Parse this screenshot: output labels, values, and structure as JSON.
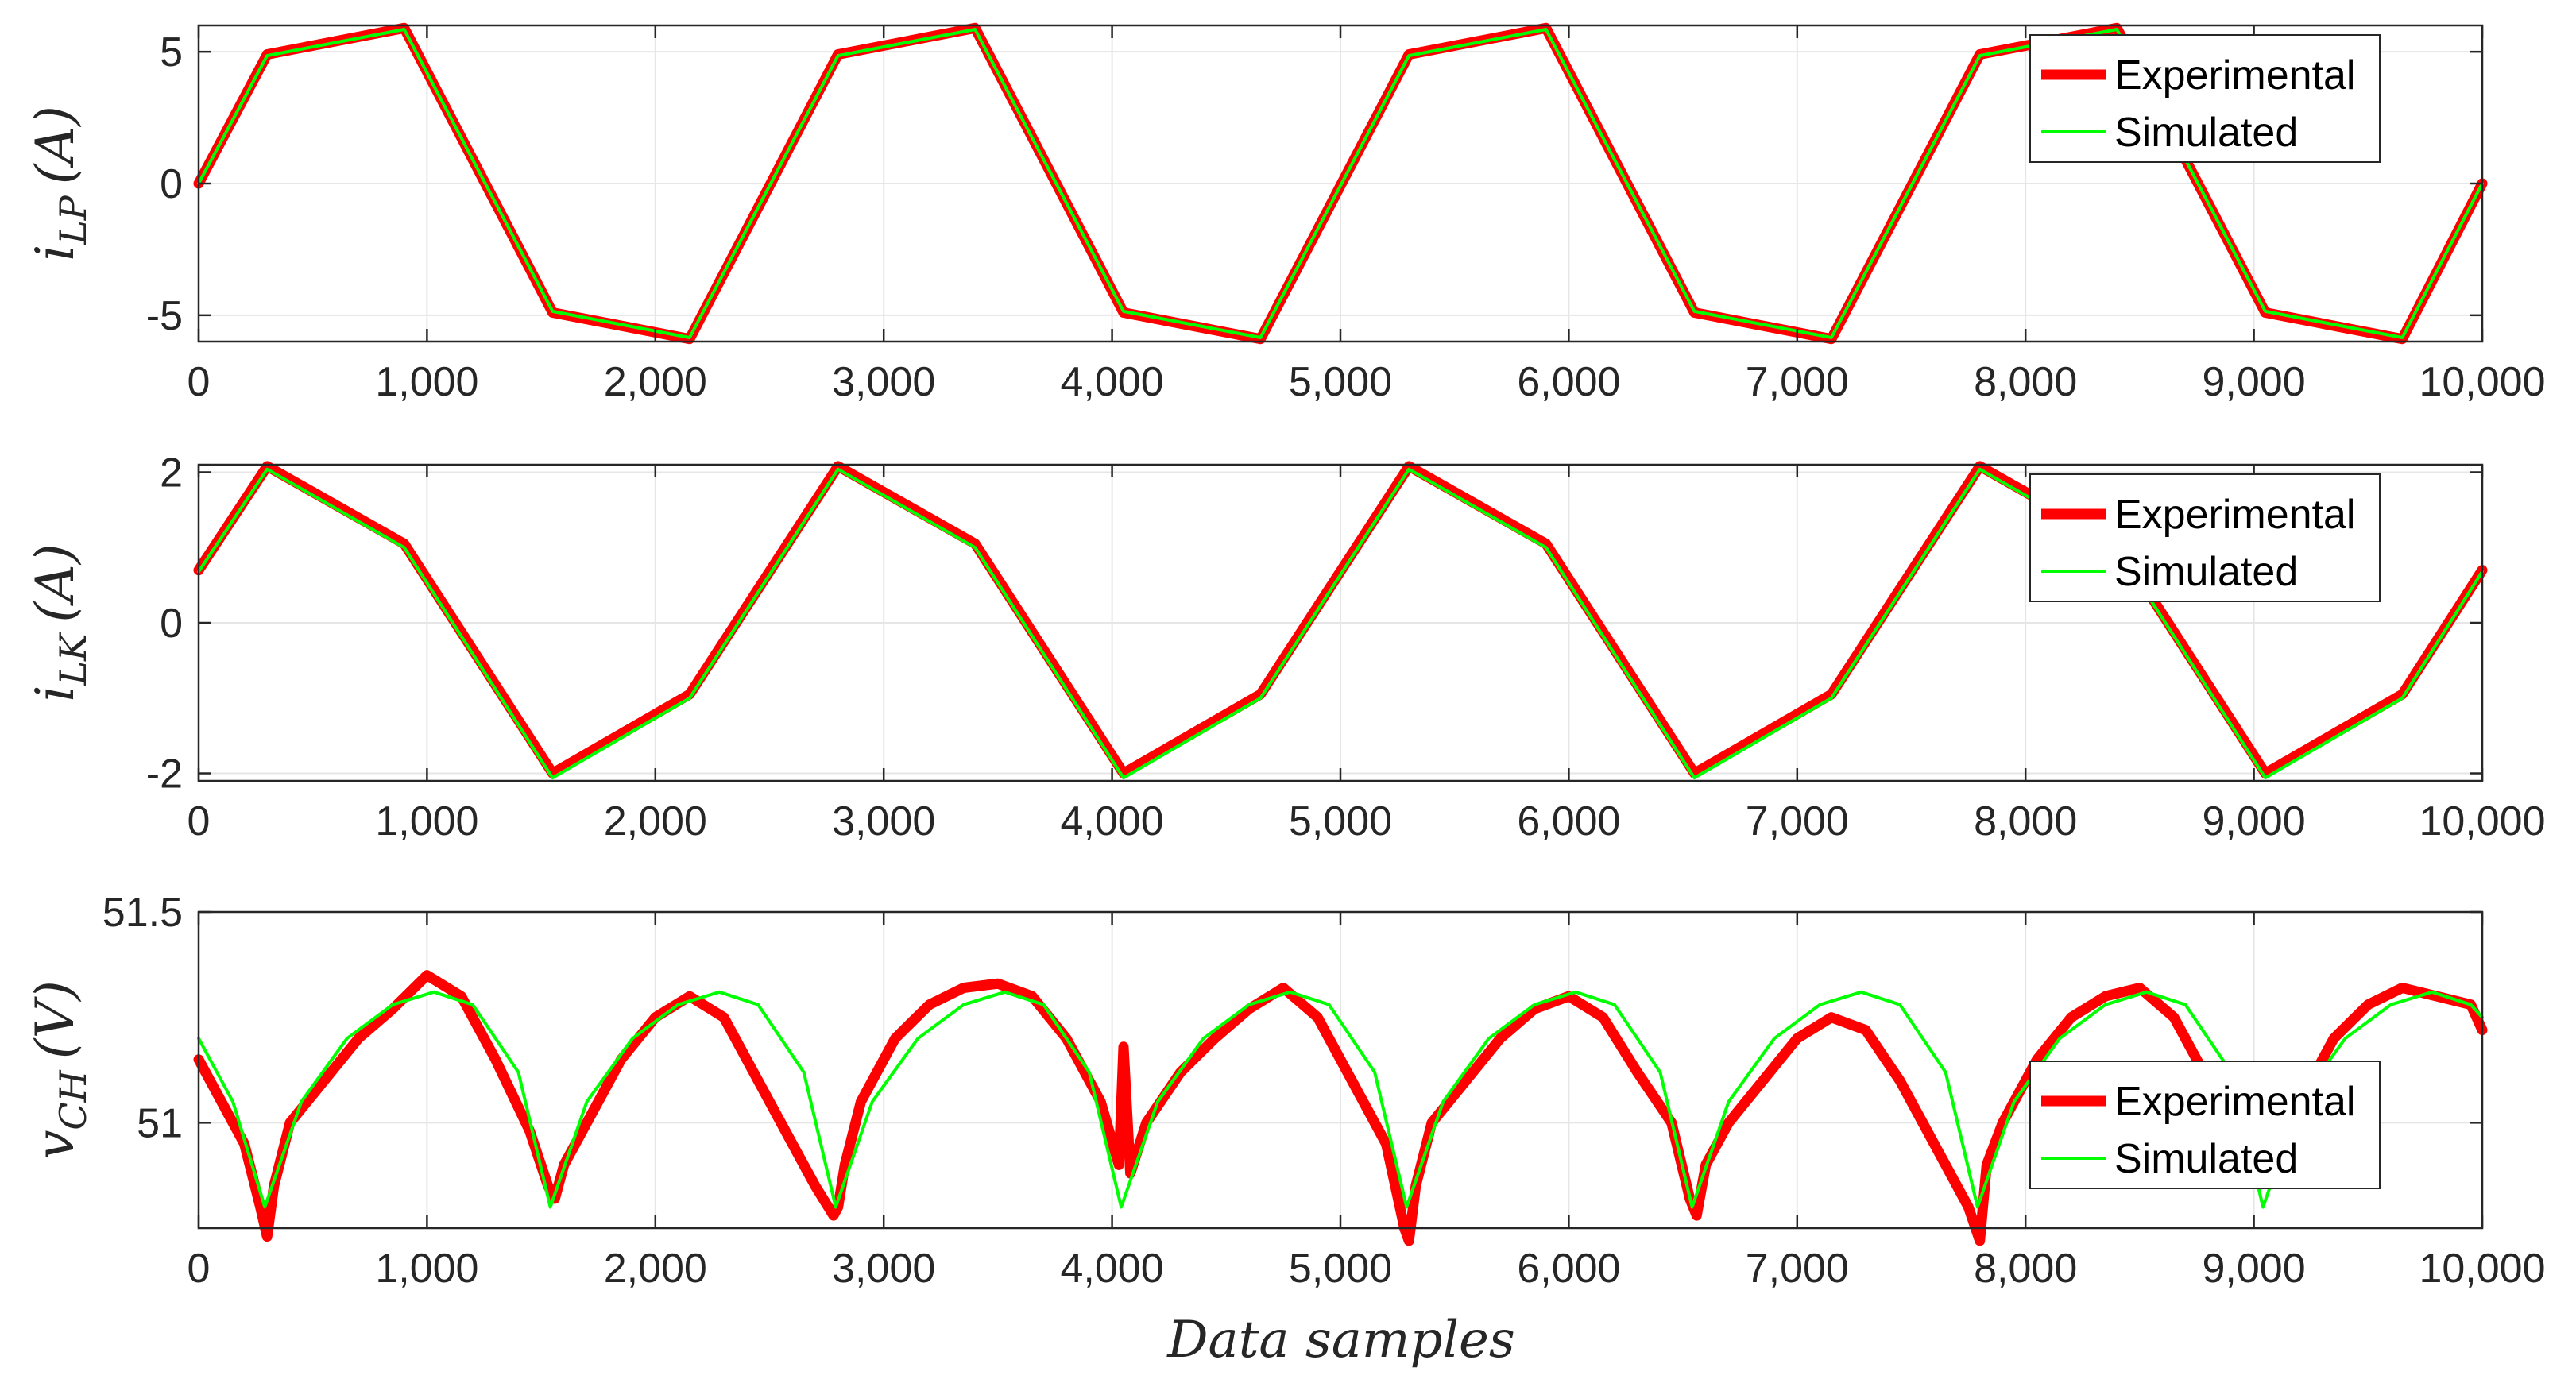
{
  "chart_data": [
    {
      "type": "line",
      "ylabel_main": "i",
      "ylabel_sub": "LP",
      "ylabel_unit": "(A)",
      "xlim": [
        0,
        10000
      ],
      "ylim": [
        -6,
        6
      ],
      "yticks": [
        -5,
        0,
        5
      ],
      "ytick_labels": [
        "-5",
        "0",
        "5"
      ],
      "xticks": [
        0,
        1000,
        2000,
        3000,
        4000,
        5000,
        6000,
        7000,
        8000,
        9000,
        10000
      ],
      "xtick_labels": [
        "0",
        "1,000",
        "2,000",
        "3,000",
        "4,000",
        "5,000",
        "6,000",
        "7,000",
        "8,000",
        "9,000",
        "10,000"
      ],
      "grid": true,
      "legend_position": "top-right",
      "series": [
        {
          "name": "Experimental",
          "color": "#ff0000",
          "x": [
            0,
            300,
            900,
            1550,
            2150,
            2800,
            3400,
            4050,
            4650,
            5300,
            5900,
            6550,
            7150,
            7800,
            8400,
            9050,
            9650,
            10000
          ],
          "values": [
            0,
            4.9,
            5.9,
            -4.9,
            -5.9,
            4.9,
            5.9,
            -4.9,
            -5.9,
            4.9,
            5.9,
            -4.9,
            -5.9,
            4.9,
            5.9,
            -4.9,
            -5.9,
            0
          ]
        },
        {
          "name": "Simulated",
          "color": "#00ff00",
          "x": [
            0,
            300,
            900,
            1550,
            2150,
            2800,
            3400,
            4050,
            4650,
            5300,
            5900,
            6550,
            7150,
            7800,
            8400,
            9050,
            9650,
            10000
          ],
          "values": [
            0,
            4.85,
            5.85,
            -4.85,
            -5.85,
            4.85,
            5.85,
            -4.85,
            -5.85,
            4.85,
            5.85,
            -4.85,
            -5.85,
            4.85,
            5.85,
            -4.85,
            -5.85,
            0
          ]
        }
      ]
    },
    {
      "type": "line",
      "ylabel_main": "i",
      "ylabel_sub": "LK",
      "ylabel_unit": "(A)",
      "xlim": [
        0,
        10000
      ],
      "ylim": [
        -2.1,
        2.1
      ],
      "yticks": [
        -2,
        0,
        2
      ],
      "ytick_labels": [
        "-2",
        "0",
        "2"
      ],
      "xticks": [
        0,
        1000,
        2000,
        3000,
        4000,
        5000,
        6000,
        7000,
        8000,
        9000,
        10000
      ],
      "xtick_labels": [
        "0",
        "1,000",
        "2,000",
        "3,000",
        "4,000",
        "5,000",
        "6,000",
        "7,000",
        "8,000",
        "9,000",
        "10,000"
      ],
      "grid": true,
      "legend_position": "top-right",
      "series": [
        {
          "name": "Experimental",
          "color": "#ff0000",
          "x": [
            0,
            300,
            900,
            1550,
            2150,
            2800,
            3400,
            4050,
            4650,
            5300,
            5900,
            6550,
            7150,
            7800,
            8400,
            9050,
            9650,
            10000
          ],
          "values": [
            0.7,
            2.08,
            1.05,
            -2.0,
            -0.95,
            2.08,
            1.05,
            -2.0,
            -0.95,
            2.08,
            1.05,
            -2.0,
            -0.95,
            2.08,
            1.05,
            -2.0,
            -0.95,
            0.7
          ]
        },
        {
          "name": "Simulated",
          "color": "#00ff00",
          "x": [
            0,
            300,
            900,
            1550,
            2150,
            2800,
            3400,
            4050,
            4650,
            5300,
            5900,
            6550,
            7150,
            7800,
            8400,
            9050,
            9650,
            10000
          ],
          "values": [
            0.68,
            2.04,
            1.0,
            -2.06,
            -1.0,
            2.04,
            1.0,
            -2.06,
            -1.0,
            2.04,
            1.0,
            -2.06,
            -1.0,
            2.04,
            1.0,
            -2.06,
            -1.0,
            0.68
          ]
        }
      ]
    },
    {
      "type": "line",
      "ylabel_main": "v",
      "ylabel_sub": "CH",
      "ylabel_unit": "(V)",
      "xlabel": "Data samples",
      "xlim": [
        0,
        10000
      ],
      "ylim": [
        50.75,
        51.5
      ],
      "yticks": [
        51,
        51.5
      ],
      "ytick_labels": [
        "51",
        "51.5"
      ],
      "xticks": [
        0,
        1000,
        2000,
        3000,
        4000,
        5000,
        6000,
        7000,
        8000,
        9000,
        10000
      ],
      "xtick_labels": [
        "0",
        "1,000",
        "2,000",
        "3,000",
        "4,000",
        "5,000",
        "6,000",
        "7,000",
        "8,000",
        "9,000",
        "10,000"
      ],
      "grid": true,
      "legend_position": "bottom-right",
      "series": [
        {
          "name": "Experimental",
          "color": "#ff0000",
          "x": [
            0,
            100,
            200,
            270,
            300,
            330,
            400,
            550,
            700,
            850,
            1000,
            1150,
            1300,
            1450,
            1530,
            1560,
            1600,
            1700,
            1850,
            2000,
            2150,
            2300,
            2450,
            2600,
            2700,
            2780,
            2800,
            2830,
            2900,
            3050,
            3200,
            3350,
            3500,
            3650,
            3800,
            3950,
            4030,
            4050,
            4080,
            4150,
            4300,
            4450,
            4600,
            4750,
            4900,
            5050,
            5200,
            5280,
            5300,
            5330,
            5400,
            5550,
            5700,
            5850,
            6000,
            6150,
            6300,
            6450,
            6530,
            6560,
            6600,
            6700,
            6850,
            7000,
            7150,
            7300,
            7450,
            7600,
            7750,
            7800,
            7830,
            7900,
            8050,
            8200,
            8350,
            8500,
            8650,
            8800,
            8950,
            9030,
            9060,
            9100,
            9200,
            9350,
            9500,
            9650,
            9800,
            9950,
            10000
          ],
          "values": [
            51.15,
            51.05,
            50.95,
            50.8,
            50.73,
            50.85,
            51.0,
            51.1,
            51.2,
            51.27,
            51.35,
            51.3,
            51.15,
            50.98,
            50.85,
            50.82,
            50.9,
            51.0,
            51.15,
            51.25,
            51.3,
            51.25,
            51.1,
            50.95,
            50.85,
            50.78,
            50.8,
            50.9,
            51.05,
            51.2,
            51.28,
            51.32,
            51.33,
            51.3,
            51.2,
            51.05,
            50.9,
            51.18,
            50.88,
            51.0,
            51.12,
            51.2,
            51.27,
            51.32,
            51.25,
            51.1,
            50.95,
            50.75,
            50.72,
            50.85,
            51.0,
            51.1,
            51.2,
            51.27,
            51.3,
            51.25,
            51.12,
            51.0,
            50.82,
            50.78,
            50.9,
            51.0,
            51.1,
            51.2,
            51.25,
            51.22,
            51.1,
            50.95,
            50.8,
            50.72,
            50.9,
            51.0,
            51.15,
            51.25,
            51.3,
            51.32,
            51.25,
            51.1,
            51.0,
            50.95,
            51.1,
            50.9,
            51.05,
            51.2,
            51.28,
            51.32,
            51.3,
            51.28,
            51.22
          ]
        },
        {
          "name": "Simulated",
          "color": "#00ff00",
          "x": [
            0,
            150,
            290,
            450,
            650,
            850,
            1030,
            1200,
            1400,
            1540,
            1700,
            1900,
            2100,
            2280,
            2450,
            2650,
            2790,
            2950,
            3150,
            3350,
            3530,
            3700,
            3900,
            4040,
            4200,
            4400,
            4600,
            4780,
            4950,
            5150,
            5290,
            5450,
            5650,
            5850,
            6030,
            6200,
            6400,
            6540,
            6700,
            6900,
            7100,
            7280,
            7450,
            7650,
            7790,
            7950,
            8150,
            8350,
            8530,
            8700,
            8900,
            9040,
            9200,
            9400,
            9600,
            9780,
            9950,
            10000
          ],
          "values": [
            51.2,
            51.05,
            50.8,
            51.05,
            51.2,
            51.28,
            51.31,
            51.28,
            51.12,
            50.8,
            51.05,
            51.2,
            51.28,
            51.31,
            51.28,
            51.12,
            50.8,
            51.05,
            51.2,
            51.28,
            51.31,
            51.28,
            51.12,
            50.8,
            51.05,
            51.2,
            51.28,
            51.31,
            51.28,
            51.12,
            50.8,
            51.05,
            51.2,
            51.28,
            51.31,
            51.28,
            51.12,
            50.8,
            51.05,
            51.2,
            51.28,
            51.31,
            51.28,
            51.12,
            50.8,
            51.05,
            51.2,
            51.28,
            51.31,
            51.28,
            51.12,
            50.8,
            51.05,
            51.2,
            51.28,
            51.31,
            51.28,
            51.25
          ]
        }
      ]
    }
  ]
}
